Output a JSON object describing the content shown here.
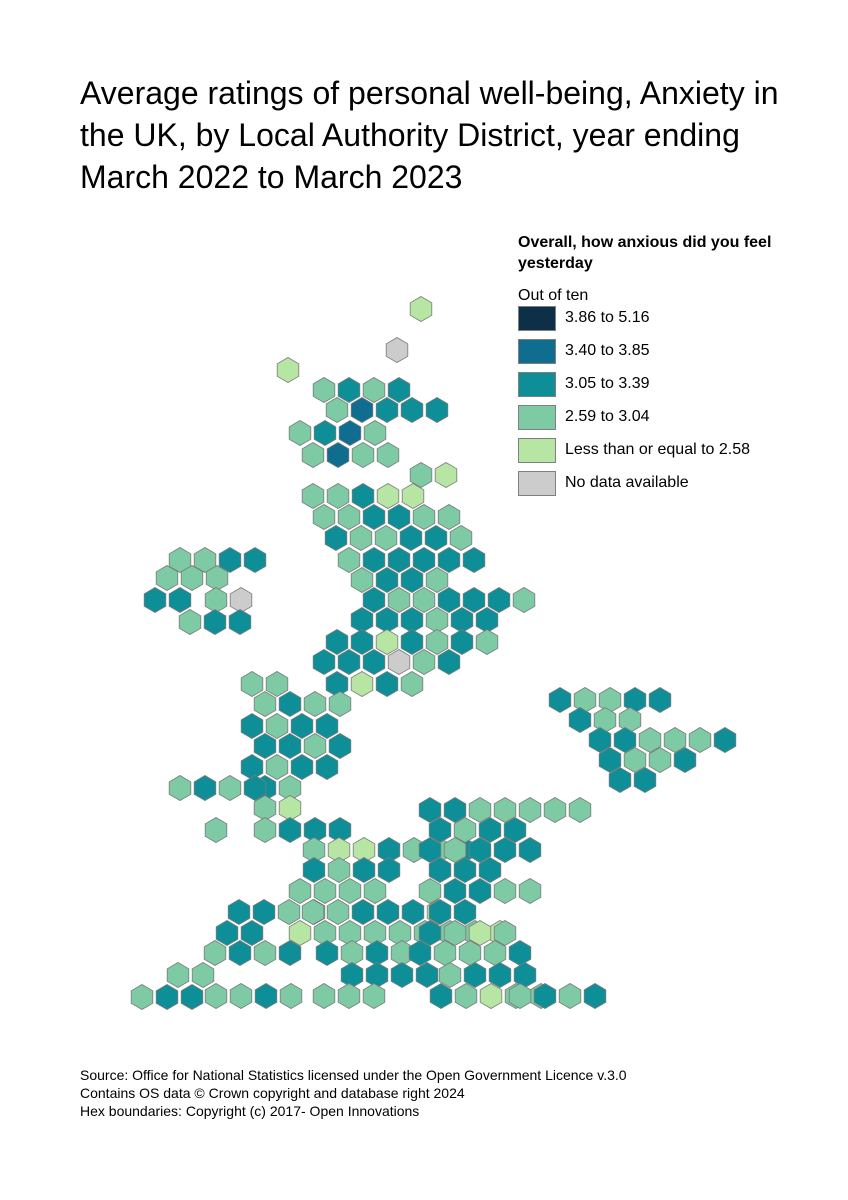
{
  "title": "Average ratings of personal well-being, Anxiety in the UK, by Local Authority District, year ending March 2022 to March 2023",
  "legend": {
    "heading": "Overall, how anxious did you feel yesterday",
    "subheading": "Out of ten",
    "items": [
      {
        "label": "3.86 to 5.16",
        "color": "#0d2f48"
      },
      {
        "label": "3.40 to 3.85",
        "color": "#0f6d8f"
      },
      {
        "label": "3.05 to 3.39",
        "color": "#0e8f98"
      },
      {
        "label": "2.59 to 3.04",
        "color": "#7dcaa4"
      },
      {
        "label": "Less than or equal to 2.58",
        "color": "#b6e5a4"
      },
      {
        "label": "No data available",
        "color": "#cccccc"
      }
    ]
  },
  "source": {
    "line1": "Source: Office for National Statistics licensed under the Open Government Licence v.3.0",
    "line2": "Contains OS data © Crown copyright and database right 2024",
    "line3": "Hex boundaries: Copyright (c) 2017- Open Innovations"
  },
  "map_data": {
    "type": "hex-cartogram",
    "hex_class_rows": [
      "4",
      "5",
      "4",
      "3232",
      "31222",
      "3213",
      "3133",
      "34",
      "33244",
      "332233",
      "233223",
      "322222",
      "3322",
      "333",
      "3223",
      "22",
      "35",
      "2332223",
      "222322",
      "2242323",
      "322",
      "222532",
      "2423",
      "33",
      "3233",
      "2322",
      "2232",
      "2322",
      "23",
      "3232",
      "34",
      "3",
      "3222",
      "3442332",
      "2322",
      "3333",
      "2233",
      "332224",
      "22",
      "433333334",
      "3232",
      "2323",
      "33",
      "2222",
      "3323",
      "23433",
      "333",
      "2233333",
      "2322",
      "23222",
      "222",
      "32233",
      "22",
      "2343",
      "23332",
      "3222",
      "3232",
      "23322",
      "233",
      "223332",
      "2332",
      "22",
      "322"
    ]
  }
}
